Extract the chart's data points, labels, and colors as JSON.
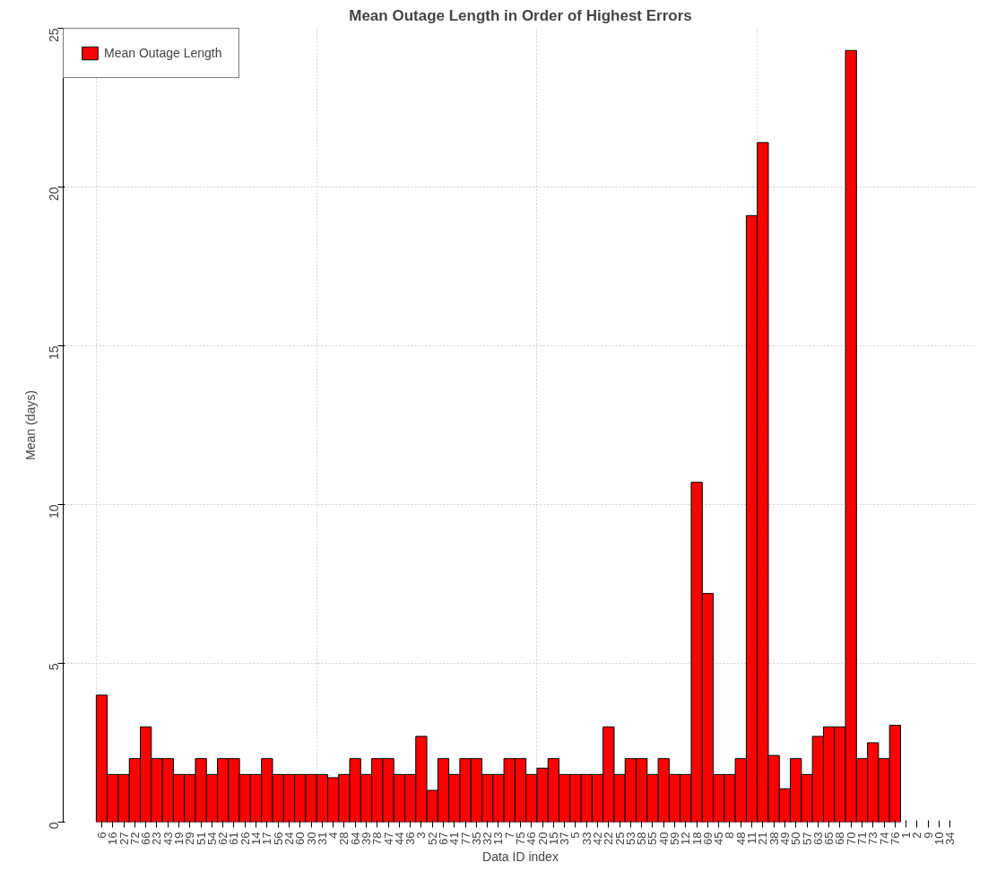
{
  "chart_data": {
    "type": "bar",
    "title": "Mean Outage Length in Order of Highest Errors",
    "xlabel": "Data ID index",
    "ylabel": "Mean (days)",
    "categories": [
      "6",
      "16",
      "27",
      "72",
      "66",
      "23",
      "43",
      "19",
      "29",
      "51",
      "54",
      "62",
      "61",
      "26",
      "14",
      "17",
      "56",
      "24",
      "60",
      "30",
      "31",
      "4",
      "28",
      "64",
      "39",
      "78",
      "47",
      "44",
      "36",
      "3",
      "52",
      "67",
      "41",
      "77",
      "35",
      "32",
      "13",
      "7",
      "75",
      "46",
      "20",
      "15",
      "37",
      "5",
      "33",
      "42",
      "22",
      "25",
      "53",
      "58",
      "55",
      "40",
      "59",
      "12",
      "18",
      "69",
      "45",
      "8",
      "48",
      "11",
      "21",
      "38",
      "49",
      "50",
      "57",
      "63",
      "65",
      "68",
      "70",
      "71",
      "73",
      "74",
      "76",
      "1",
      "2",
      "9",
      "10",
      "34"
    ],
    "series": [
      {
        "name": "Mean Outage Length",
        "color": "#ff0000",
        "values": [
          4,
          1.5,
          1.5,
          2,
          3,
          2,
          2,
          1.5,
          1.5,
          2,
          1.5,
          2,
          2,
          1.5,
          1.5,
          2,
          1.5,
          1.5,
          1.5,
          1.5,
          1.5,
          1.4,
          1.5,
          2,
          1.5,
          2,
          2,
          1.5,
          1.5,
          2.7,
          1,
          2,
          1.5,
          2,
          2,
          1.5,
          1.5,
          2,
          2,
          1.5,
          1.7,
          2,
          1.5,
          1.5,
          1.5,
          1.5,
          3,
          1.5,
          2,
          2,
          1.5,
          2,
          1.5,
          1.5,
          10.7,
          7.2,
          1.5,
          1.5,
          2,
          19.1,
          21.4,
          2.1,
          1.05,
          2,
          1.5,
          2.7,
          3,
          3,
          24.3,
          2,
          2.5,
          2,
          3.05,
          0,
          0,
          0,
          0,
          0
        ]
      }
    ],
    "ylim": [
      0,
      25
    ],
    "yticks": [
      0,
      5,
      10,
      15,
      20,
      25
    ],
    "grid": true,
    "legend": "top left"
  }
}
